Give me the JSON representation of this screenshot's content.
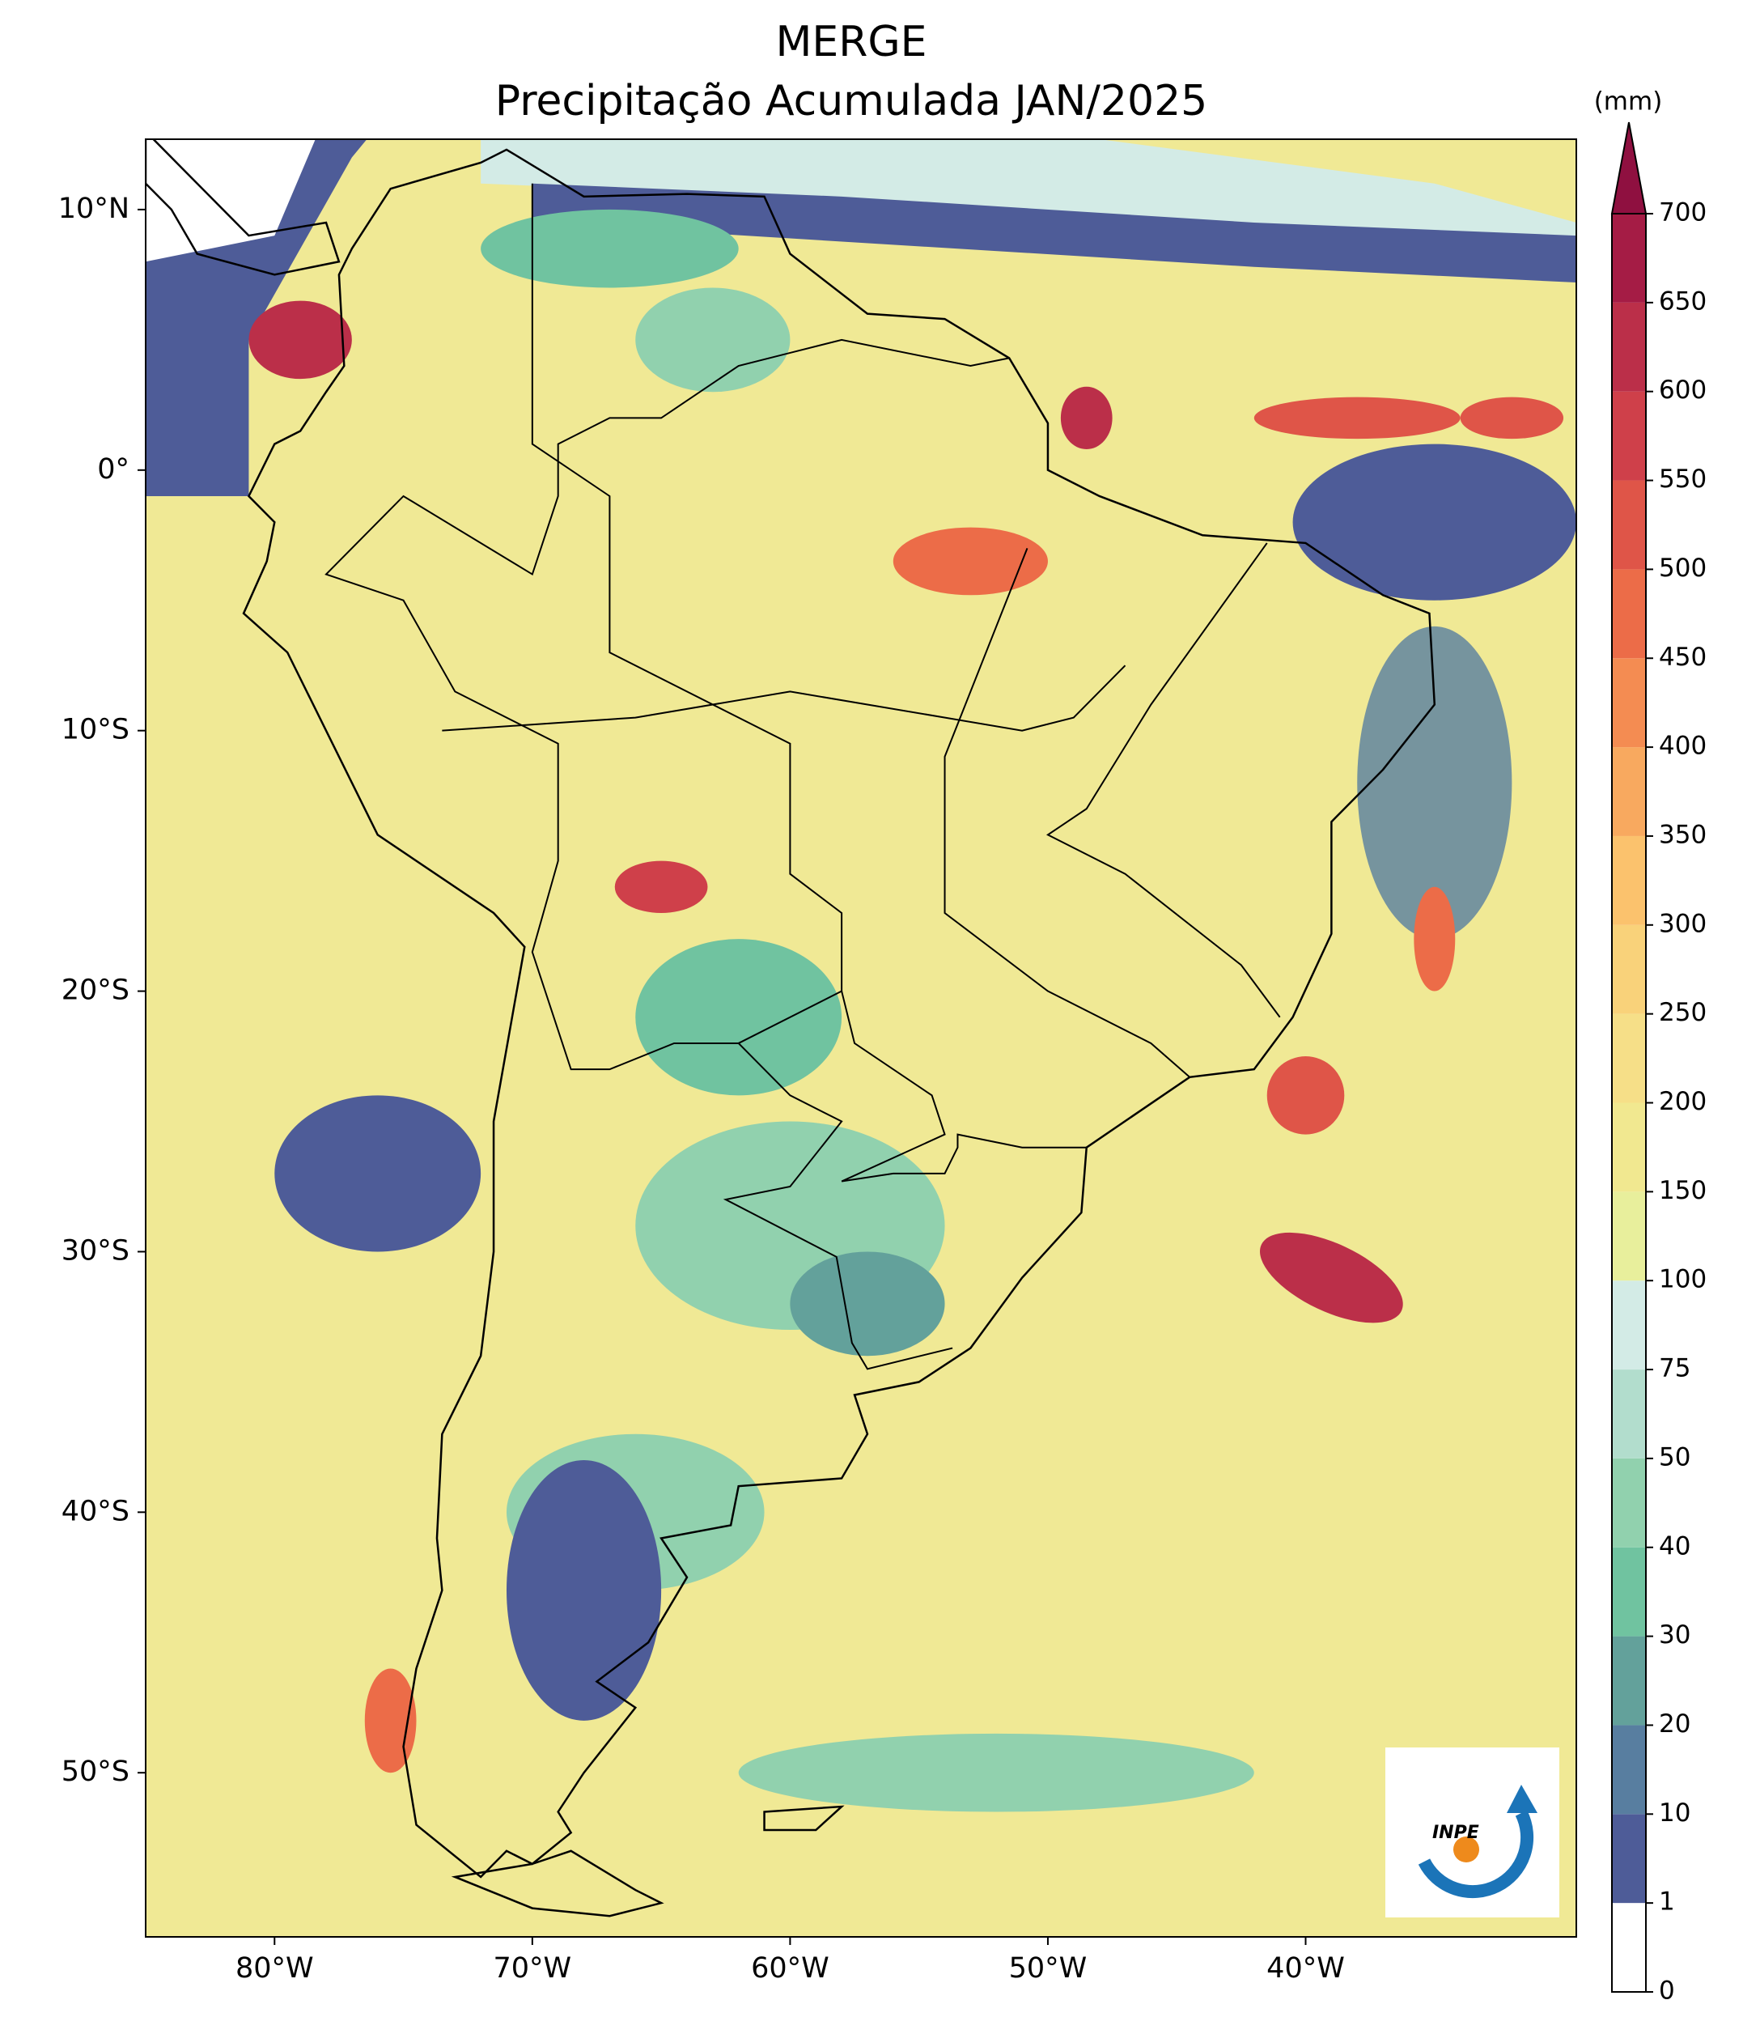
{
  "title": [
    "MERGE",
    "Precipitação Acumulada JAN/2025"
  ],
  "map": {
    "xlim": [
      -85,
      -29.5
    ],
    "ylim": [
      -56.3,
      12.7
    ],
    "xticks": [
      {
        "value": -80,
        "label": "80°W"
      },
      {
        "value": -70,
        "label": "70°W"
      },
      {
        "value": -60,
        "label": "60°W"
      },
      {
        "value": -50,
        "label": "50°W"
      },
      {
        "value": -40,
        "label": "40°W"
      }
    ],
    "yticks": [
      {
        "value": 10,
        "label": "10°N"
      },
      {
        "value": 0,
        "label": "0°"
      },
      {
        "value": -10,
        "label": "10°S"
      },
      {
        "value": -20,
        "label": "20°S"
      },
      {
        "value": -30,
        "label": "30°S"
      },
      {
        "value": -40,
        "label": "40°S"
      },
      {
        "value": -50,
        "label": "50°S"
      }
    ]
  },
  "colorbar": {
    "unit": "(mm)",
    "ticks": [
      0,
      1,
      10,
      20,
      30,
      40,
      50,
      75,
      100,
      150,
      200,
      250,
      300,
      350,
      400,
      450,
      500,
      550,
      600,
      650,
      700
    ],
    "colors": [
      "#ffffff",
      "#4e5c98",
      "#587ea0",
      "#63a19b",
      "#70c3a0",
      "#91d1ae",
      "#b2ddcd",
      "#d3ebe6",
      "#e8ef9c",
      "#f1e890",
      "#f6df88",
      "#f9d27a",
      "#fbc26d",
      "#f8a95f",
      "#f48c52",
      "#ec6c48",
      "#df5548",
      "#cf404a",
      "#bb2f49",
      "#a51c45"
    ],
    "extend_color": "#8f1040"
  },
  "logo": {
    "text": "INPE"
  }
}
